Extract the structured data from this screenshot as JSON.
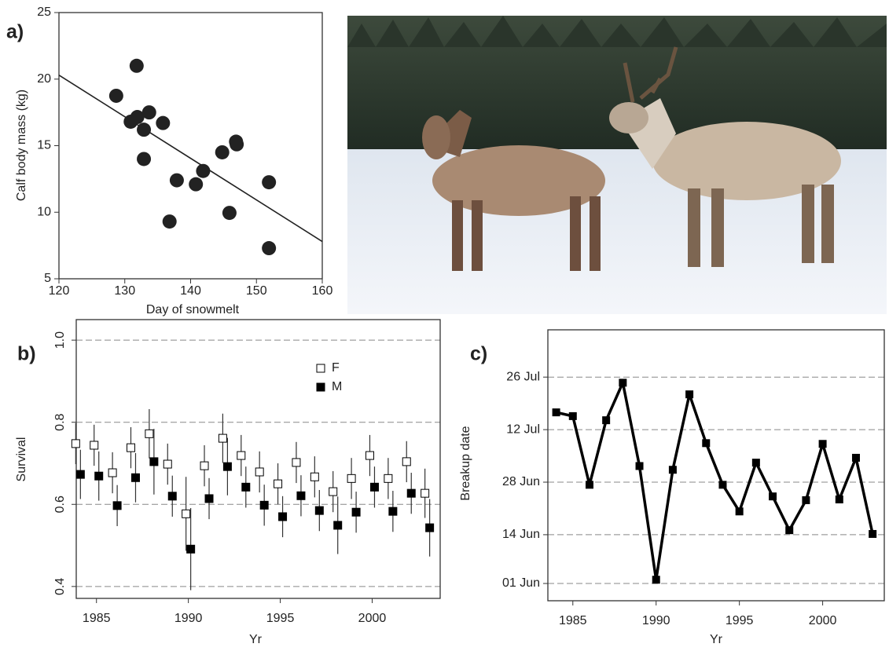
{
  "chart_data": [
    {
      "type": "scatter",
      "label": "a)",
      "x_label": "Day of snowmelt",
      "y_label": "Calf body mass (kg)",
      "xlim": [
        120,
        160
      ],
      "ylim": [
        5,
        25
      ],
      "xticks": [
        120,
        130,
        140,
        150,
        160
      ],
      "yticks": [
        5,
        10,
        15,
        20,
        25
      ],
      "x": [
        128.7,
        131.8,
        130.9,
        131.9,
        132.9,
        133.7,
        135.8,
        132.9,
        137.9,
        136.8,
        140.8,
        141.9,
        144.8,
        146.9,
        147.0,
        145.9,
        151.9,
        151.9
      ],
      "y": [
        18.75,
        21.0,
        16.8,
        17.15,
        16.2,
        17.5,
        16.7,
        14.0,
        12.4,
        9.3,
        12.1,
        13.1,
        14.5,
        15.3,
        15.1,
        9.95,
        12.25,
        7.3
      ],
      "color": "#222222",
      "trendline": {
        "x": [
          120,
          160
        ],
        "y": [
          20.3,
          7.8
        ]
      }
    },
    {
      "type": "errorbar",
      "label": "b)",
      "x_label": "Yr",
      "y_label": "Survival",
      "xlim": [
        1983.9,
        2003.7
      ],
      "ylim": [
        0.371,
        1.05
      ],
      "xticks": [
        1985,
        1990,
        1995,
        2000
      ],
      "yticks": [
        0.4,
        0.6,
        0.8,
        {
          "value": 1,
          "label": "1.0"
        }
      ],
      "grid": true,
      "legend": "upper right",
      "x": [
        1984,
        1985,
        1986,
        1987,
        1988,
        1989,
        1990,
        1991,
        1992,
        1993,
        1994,
        1995,
        1996,
        1997,
        1998,
        1999,
        2000,
        2001,
        2002,
        2003
      ],
      "series": [
        {
          "name": "F",
          "marker": "open-square",
          "color": "#000000",
          "values": [
            0.748,
            0.744,
            0.677,
            0.738,
            0.772,
            0.698,
            0.577,
            0.694,
            0.761,
            0.719,
            0.679,
            0.65,
            0.702,
            0.667,
            0.631,
            0.663,
            0.719,
            0.663,
            0.704,
            0.627
          ],
          "errors": [
            0.05,
            0.05,
            0.05,
            0.05,
            0.06,
            0.05,
            0.09,
            0.05,
            0.06,
            0.05,
            0.05,
            0.05,
            0.05,
            0.05,
            0.05,
            0.05,
            0.05,
            0.05,
            0.05,
            0.06
          ]
        },
        {
          "name": "M",
          "marker": "filled-square",
          "color": "#000000",
          "values": [
            0.673,
            0.669,
            0.597,
            0.665,
            0.704,
            0.62,
            0.491,
            0.614,
            0.692,
            0.642,
            0.598,
            0.57,
            0.621,
            0.585,
            0.549,
            0.581,
            0.642,
            0.583,
            0.627,
            0.543
          ],
          "errors": [
            0.06,
            0.06,
            0.05,
            0.06,
            0.08,
            0.05,
            0.1,
            0.05,
            0.07,
            0.05,
            0.05,
            0.05,
            0.05,
            0.05,
            0.07,
            0.05,
            0.05,
            0.05,
            0.05,
            0.07
          ]
        }
      ]
    },
    {
      "type": "line",
      "label": "c)",
      "x_label": "Yr",
      "y_label": "Breakup date",
      "xlim": [
        1983.5,
        2003.7
      ],
      "ylim": [
        147.4,
        219.6
      ],
      "xticks": [
        1985,
        1990,
        1995,
        2000
      ],
      "yticks": [
        {
          "value": 152,
          "label": "01 Jun"
        },
        {
          "value": 165,
          "label": "14 Jun"
        },
        {
          "value": 179,
          "label": "28 Jun"
        },
        {
          "value": 193,
          "label": "12 Jul"
        },
        {
          "value": 207,
          "label": "26 Jul"
        }
      ],
      "grid": true,
      "color": "#000000",
      "x": [
        1984,
        1985,
        1986,
        1987,
        1988,
        1989,
        1990,
        1991,
        1992,
        1993,
        1994,
        1995,
        1996,
        1997,
        1998,
        1999,
        2000,
        2001,
        2002,
        2003
      ],
      "values": [
        197.6,
        196.6,
        178.3,
        195.5,
        205.5,
        183.3,
        153.0,
        182.3,
        202.4,
        189.4,
        178.3,
        171.2,
        184.2,
        175.2,
        166.2,
        174.2,
        189.2,
        174.4,
        185.5,
        165.2
      ]
    }
  ]
}
